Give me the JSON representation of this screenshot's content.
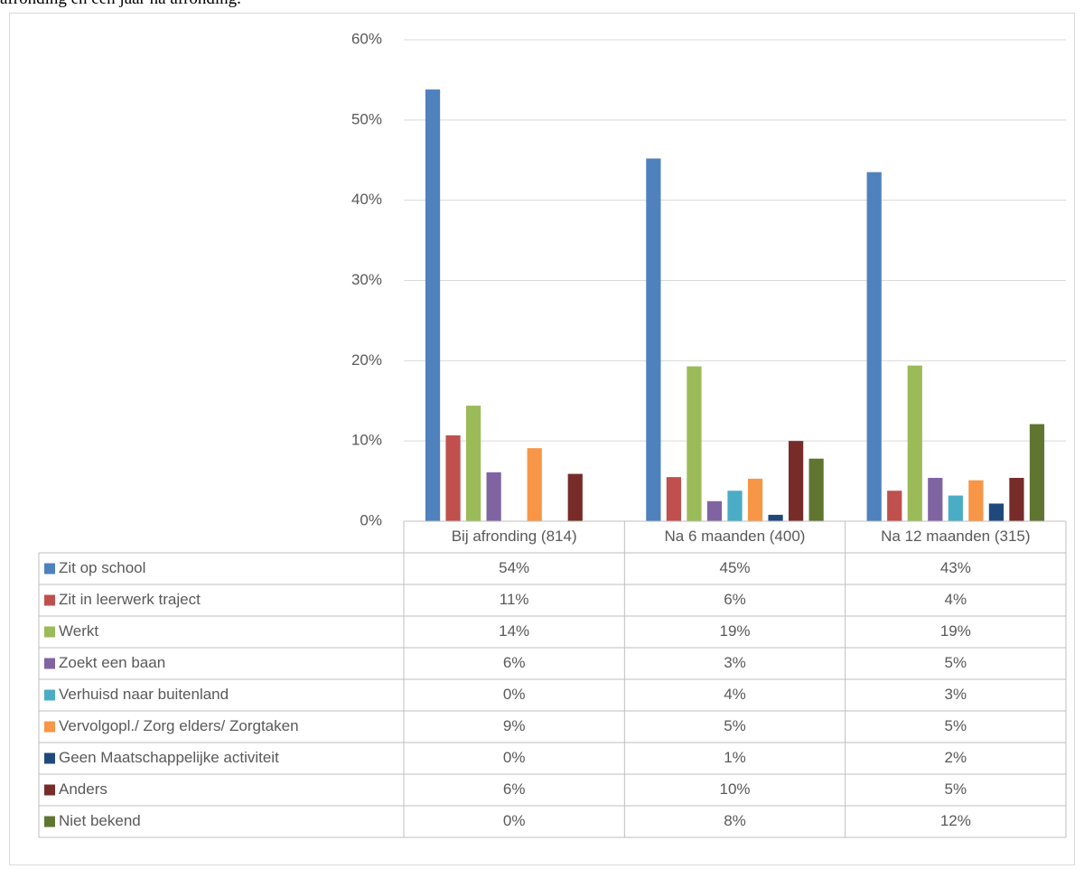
{
  "caption": "afronding en een jaar na afronding.",
  "chart_data": {
    "type": "bar",
    "categories": [
      "Bij afronding (814)",
      "Na 6 maanden (400)",
      "Na 12 maanden (315)"
    ],
    "ylim": [
      0,
      60
    ],
    "yticks": [
      "0%",
      "10%",
      "20%",
      "30%",
      "40%",
      "50%",
      "60%"
    ],
    "grid": true,
    "legend": "data-table-below",
    "series": [
      {
        "name": "Zit op school",
        "color": "#4F81BD",
        "values": [
          53.8,
          45.2,
          43.5
        ],
        "labels": [
          "54%",
          "45%",
          "43%"
        ]
      },
      {
        "name": "Zit in leerwerk traject",
        "color": "#C0504D",
        "values": [
          10.7,
          5.5,
          3.8
        ],
        "labels": [
          "11%",
          "6%",
          "4%"
        ]
      },
      {
        "name": "Werkt",
        "color": "#9BBB59",
        "values": [
          14.4,
          19.3,
          19.4
        ],
        "labels": [
          "14%",
          "19%",
          "19%"
        ]
      },
      {
        "name": "Zoekt een baan",
        "color": "#8064A2",
        "values": [
          6.1,
          2.5,
          5.4
        ],
        "labels": [
          "6%",
          "3%",
          "5%"
        ]
      },
      {
        "name": "Verhuisd naar buitenland",
        "color": "#4BACC6",
        "values": [
          0,
          3.8,
          3.2
        ],
        "labels": [
          "0%",
          "4%",
          "3%"
        ]
      },
      {
        "name": "Vervolgopl./  Zorg elders/  Zorgtaken",
        "color": "#F79646",
        "values": [
          9.1,
          5.3,
          5.1
        ],
        "labels": [
          "9%",
          "5%",
          "5%"
        ]
      },
      {
        "name": "Geen Maatschappelijke activiteit",
        "color": "#1F497D",
        "values": [
          0,
          0.8,
          2.2
        ],
        "labels": [
          "0%",
          "1%",
          "2%"
        ]
      },
      {
        "name": "Anders",
        "color": "#772C2A",
        "values": [
          5.9,
          10.0,
          5.4
        ],
        "labels": [
          "6%",
          "10%",
          "5%"
        ]
      },
      {
        "name": "Niet bekend",
        "color": "#5F7530",
        "values": [
          0,
          7.8,
          12.1
        ],
        "labels": [
          "0%",
          "8%",
          "12%"
        ]
      }
    ]
  }
}
